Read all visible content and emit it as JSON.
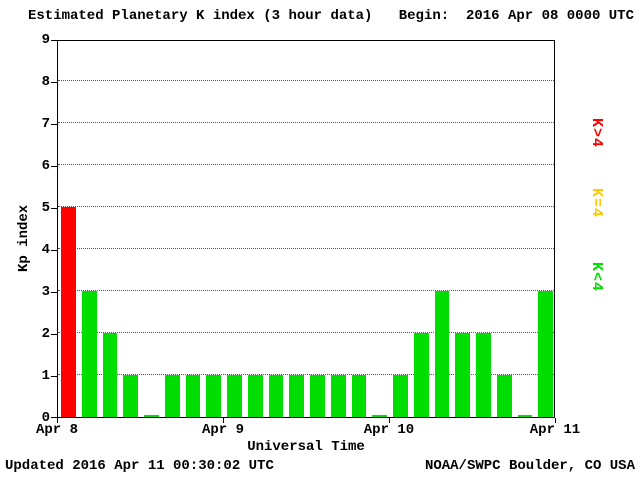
{
  "header": {
    "title": "Estimated Planetary K index (3 hour data)",
    "begin": "Begin:  2016 Apr 08 0000 UTC"
  },
  "footer": {
    "updated": "Updated 2016 Apr 11 00:30:02 UTC",
    "source": "NOAA/SWPC Boulder, CO USA"
  },
  "chart_data": {
    "type": "bar",
    "title": "Estimated Planetary K index (3 hour data)",
    "begin_time": "2016 Apr 08 0000 UTC",
    "xlabel": "Universal Time",
    "ylabel": "Kp index",
    "ylim": [
      0,
      9
    ],
    "y_ticks": [
      0,
      1,
      2,
      3,
      4,
      5,
      6,
      7,
      8,
      9
    ],
    "x_tick_labels": [
      "Apr 8",
      "Apr 9",
      "Apr 10",
      "Apr 11"
    ],
    "readings_per_day": 8,
    "interval_hours": 3,
    "values": [
      5,
      3,
      2,
      1,
      0,
      1,
      1,
      1,
      1,
      1,
      1,
      1,
      1,
      1,
      1,
      0,
      1,
      2,
      3,
      2,
      2,
      1,
      0,
      3
    ],
    "colors": {
      "high": "#ff0000",
      "mid": "#ffc800",
      "low": "#00dd00"
    },
    "color_rule": "red if K>4, yellow if K=4, green if K<4",
    "legend": [
      {
        "label": "K>4",
        "color": "#ff0000"
      },
      {
        "label": "K=4",
        "color": "#ffc800"
      },
      {
        "label": "K<4",
        "color": "#00dd00"
      }
    ],
    "grid": "horizontal dotted lines at each integer Kp value",
    "legend_position": "right"
  }
}
